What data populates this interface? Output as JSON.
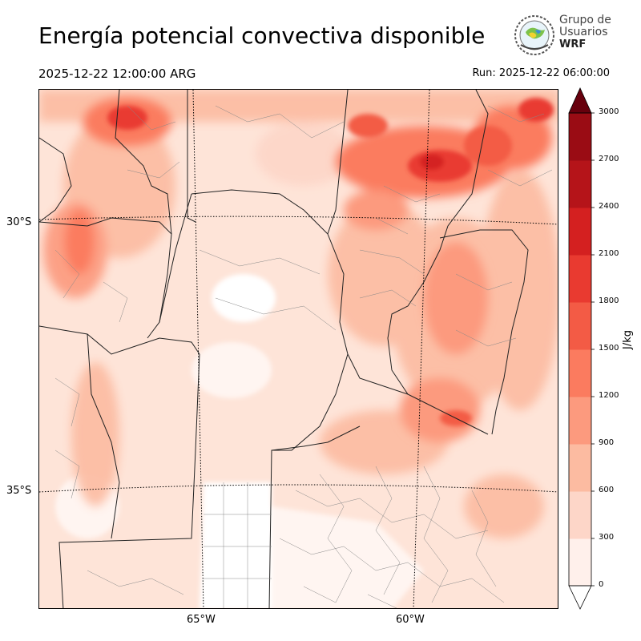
{
  "header": {
    "title": "Energía potencial convectiva disponible",
    "valid_time": "2025-12-22 12:00:00 ARG",
    "run_time": "Run: 2025-12-22 06:00:00"
  },
  "logo": {
    "line1": "Grupo de",
    "line2": "Usuarios",
    "line3": "WRF"
  },
  "map": {
    "lat_labels": [
      "30°S",
      "35°S"
    ],
    "lon_labels": [
      "65°W",
      "60°W"
    ]
  },
  "colorbar": {
    "unit": "J/kg",
    "ticks": [
      "0",
      "300",
      "600",
      "900",
      "1200",
      "1500",
      "1800",
      "2100",
      "2400",
      "2700",
      "3000"
    ],
    "colors": [
      "#fff0eb",
      "#fdd6c8",
      "#fcbba1",
      "#fc9a7e",
      "#fb7b5f",
      "#f35b45",
      "#e93a30",
      "#d42020",
      "#b51419",
      "#9a0c14",
      "#730a10"
    ],
    "over_color": "#67000d",
    "under_color": "#ffffff"
  }
}
